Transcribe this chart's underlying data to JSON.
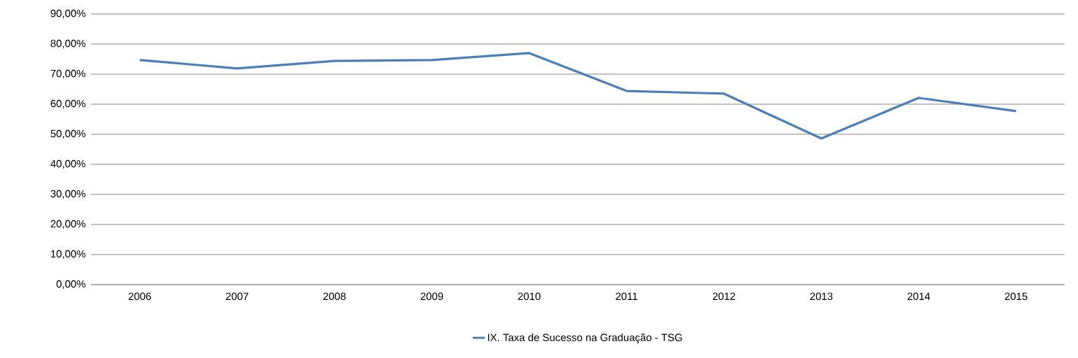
{
  "chart_data": {
    "type": "line",
    "categories": [
      "2006",
      "2007",
      "2008",
      "2009",
      "2010",
      "2011",
      "2012",
      "2013",
      "2014",
      "2015"
    ],
    "series": [
      {
        "name": "IX. Taxa de Sucesso na Graduação - TSG",
        "color": "#4a7ebb",
        "values": [
          74.7,
          71.9,
          74.4,
          74.7,
          77.0,
          64.4,
          63.5,
          48.6,
          62.1,
          57.7
        ]
      }
    ],
    "ylim": [
      0,
      90
    ],
    "yticks": [
      {
        "value": 0,
        "label": "0,00%"
      },
      {
        "value": 10,
        "label": "10,00%"
      },
      {
        "value": 20,
        "label": "20,00%"
      },
      {
        "value": 30,
        "label": "30,00%"
      },
      {
        "value": 40,
        "label": "40,00%"
      },
      {
        "value": 50,
        "label": "50,00%"
      },
      {
        "value": 60,
        "label": "60,00%"
      },
      {
        "value": 70,
        "label": "70,00%"
      },
      {
        "value": 80,
        "label": "80,00%"
      },
      {
        "value": 90,
        "label": "90,00%"
      }
    ],
    "grid": "y",
    "legend": "bottom",
    "marker": "none",
    "line_style": "solid"
  }
}
